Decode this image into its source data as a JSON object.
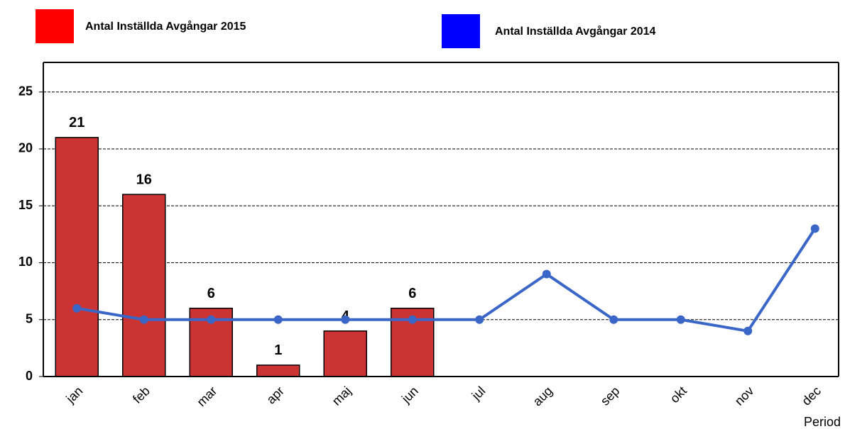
{
  "chart_data": {
    "type": "bar",
    "categories": [
      "jan",
      "feb",
      "mar",
      "apr",
      "maj",
      "jun",
      "jul",
      "aug",
      "sep",
      "okt",
      "nov",
      "dec"
    ],
    "series": [
      {
        "name": "Antal Inställda Avgångar 2015",
        "type": "bar",
        "color": "#cc3333",
        "legend_color": "#ff0000",
        "values": [
          21,
          16,
          6,
          1,
          4,
          6,
          null,
          null,
          null,
          null,
          null,
          null
        ]
      },
      {
        "name": "Antal Inställda Avgångar 2014",
        "type": "line",
        "color": "#3a66c8",
        "legend_color": "#0000ff",
        "values": [
          6,
          5,
          5,
          5,
          5,
          5,
          5,
          9,
          5,
          5,
          4,
          13
        ]
      }
    ],
    "x_label": "Period",
    "ylim": [
      0,
      27.6
    ],
    "yticks": [
      0,
      5,
      10,
      15,
      20,
      25
    ],
    "grid": true
  }
}
